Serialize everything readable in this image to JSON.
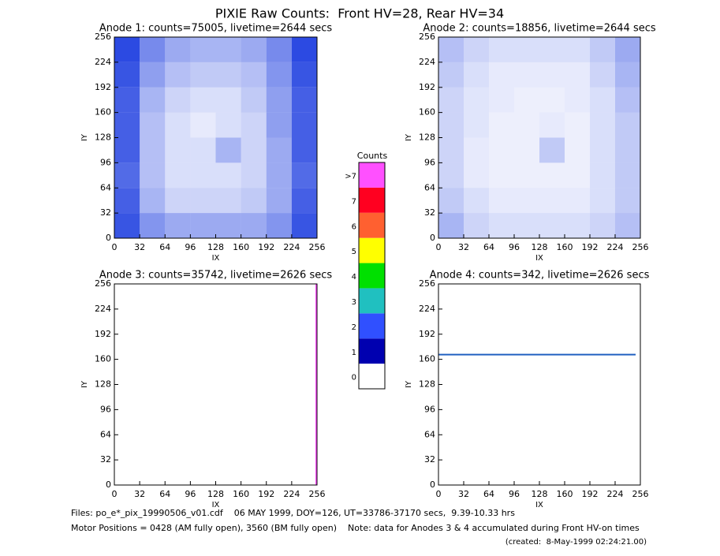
{
  "title": "PIXIE Raw Counts:  Front HV=28, Rear HV=34",
  "footer": [
    "Files: po_e*_pix_19990506_v01.cdf    06 MAY 1999, DOY=126, UT=33786-37170 secs,  9.39-10.33 hrs",
    "Motor Positions = 0428 (AM fully open), 3560 (BM fully open)    Note: data for Anodes 3 & 4 accumulated during Front HV-on times",
    "(created:  8-May-1999 02:24:21.00)"
  ],
  "colorbar": {
    "title": "Counts",
    "labels": [
      "0",
      "1",
      "2",
      "3",
      "4",
      "5",
      "6",
      "7",
      ">7"
    ],
    "colors": [
      "#ffffff",
      "#0000b0",
      "#3050ff",
      "#20c0c0",
      "#00e000",
      "#ffff00",
      "#ff6030",
      "#ff0020",
      "#ff50ff"
    ]
  },
  "chart_data": [
    {
      "type": "heatmap",
      "title": "Anode 1: counts=75005, livetime=2644 secs",
      "x_label": "IX",
      "y_label": "IY",
      "xlim": [
        0,
        256
      ],
      "ylim": [
        0,
        256
      ],
      "xticks": [
        0,
        32,
        64,
        96,
        128,
        160,
        192,
        224,
        256
      ],
      "yticks": [
        0,
        32,
        64,
        96,
        128,
        160,
        192,
        224,
        256
      ],
      "color": "#2040e0",
      "z": [
        [
          1.6,
          1.0,
          0.8,
          0.8,
          0.8,
          0.8,
          1.0,
          1.6
        ],
        [
          1.5,
          0.7,
          0.4,
          0.4,
          0.4,
          0.5,
          0.8,
          1.5
        ],
        [
          1.4,
          0.6,
          0.3,
          0.3,
          0.3,
          0.4,
          0.8,
          1.4
        ],
        [
          1.5,
          0.6,
          0.3,
          0.3,
          0.7,
          0.4,
          0.8,
          1.5
        ],
        [
          1.5,
          0.6,
          0.3,
          0.2,
          0.3,
          0.4,
          0.9,
          1.5
        ],
        [
          1.5,
          0.7,
          0.4,
          0.3,
          0.3,
          0.5,
          0.9,
          1.5
        ],
        [
          1.6,
          0.9,
          0.6,
          0.5,
          0.5,
          0.6,
          1.0,
          1.6
        ],
        [
          1.7,
          1.1,
          0.8,
          0.7,
          0.7,
          0.8,
          1.1,
          1.7
        ]
      ]
    },
    {
      "type": "heatmap",
      "title": "Anode 2: counts=18856, livetime=2644 secs",
      "x_label": "IX",
      "y_label": "IY",
      "xlim": [
        0,
        256
      ],
      "ylim": [
        0,
        256
      ],
      "xticks": [
        0,
        32,
        64,
        96,
        128,
        160,
        192,
        224,
        256
      ],
      "yticks": [
        0,
        32,
        64,
        96,
        128,
        160,
        192,
        224,
        256
      ],
      "color": "#2040e0",
      "z": [
        [
          0.7,
          0.4,
          0.3,
          0.3,
          0.3,
          0.3,
          0.4,
          0.6
        ],
        [
          0.5,
          0.3,
          0.2,
          0.2,
          0.2,
          0.2,
          0.3,
          0.5
        ],
        [
          0.4,
          0.2,
          0.15,
          0.15,
          0.15,
          0.15,
          0.3,
          0.5
        ],
        [
          0.4,
          0.2,
          0.15,
          0.15,
          0.5,
          0.15,
          0.3,
          0.5
        ],
        [
          0.4,
          0.25,
          0.15,
          0.15,
          0.2,
          0.15,
          0.3,
          0.5
        ],
        [
          0.4,
          0.25,
          0.2,
          0.15,
          0.15,
          0.2,
          0.3,
          0.6
        ],
        [
          0.5,
          0.3,
          0.2,
          0.2,
          0.2,
          0.2,
          0.4,
          0.7
        ],
        [
          0.6,
          0.4,
          0.3,
          0.3,
          0.3,
          0.3,
          0.5,
          0.8
        ]
      ]
    },
    {
      "type": "line",
      "title": "Anode 3: counts=35742, livetime=2626 secs",
      "x_label": "IX",
      "y_label": "IY",
      "xlim": [
        0,
        256
      ],
      "ylim": [
        0,
        256
      ],
      "xticks": [
        0,
        32,
        64,
        96,
        128,
        160,
        192,
        224,
        256
      ],
      "yticks": [
        0,
        32,
        64,
        96,
        128,
        160,
        192,
        224,
        256
      ],
      "color": "#ff50ff",
      "x": [
        255,
        255
      ],
      "y": [
        0,
        256
      ]
    },
    {
      "type": "line",
      "title": "Anode 4: counts=342, livetime=2626 secs",
      "x_label": "IX",
      "y_label": "IY",
      "xlim": [
        0,
        256
      ],
      "ylim": [
        0,
        256
      ],
      "xticks": [
        0,
        32,
        64,
        96,
        128,
        160,
        192,
        224,
        256
      ],
      "yticks": [
        0,
        32,
        64,
        96,
        128,
        160,
        192,
        224,
        256
      ],
      "color": "#2060c0",
      "x": [
        0,
        250
      ],
      "y": [
        166,
        166
      ]
    }
  ]
}
